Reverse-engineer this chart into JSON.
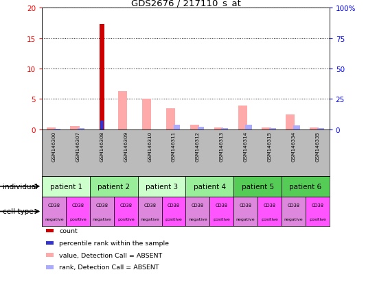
{
  "title": "GDS2676 / 217110_s_at",
  "samples": [
    "GSM146300",
    "GSM146307",
    "GSM146308",
    "GSM146309",
    "GSM146310",
    "GSM146311",
    "GSM146312",
    "GSM146313",
    "GSM146314",
    "GSM146315",
    "GSM146334",
    "GSM146335"
  ],
  "count_values": [
    0,
    0,
    17.3,
    0,
    0,
    0,
    0,
    0,
    0,
    0,
    0,
    0
  ],
  "percentile_values": [
    0,
    0,
    7.0,
    0,
    0,
    0,
    0,
    0,
    0,
    0,
    0,
    0
  ],
  "absent_value_values": [
    0.3,
    0.5,
    0,
    6.3,
    5.0,
    3.5,
    0.7,
    0.3,
    3.9,
    0.3,
    2.4,
    0.3
  ],
  "absent_rank_values": [
    0.5,
    0.8,
    0,
    0,
    0,
    4.0,
    2.0,
    0.8,
    4.0,
    0.8,
    3.1,
    0.8
  ],
  "patients": [
    {
      "label": "patient 1",
      "cols": [
        0,
        1
      ],
      "color": "#ccffcc"
    },
    {
      "label": "patient 2",
      "cols": [
        2,
        3
      ],
      "color": "#99ee99"
    },
    {
      "label": "patient 3",
      "cols": [
        4,
        5
      ],
      "color": "#ccffcc"
    },
    {
      "label": "patient 4",
      "cols": [
        6,
        7
      ],
      "color": "#99ee99"
    },
    {
      "label": "patient 5",
      "cols": [
        8,
        9
      ],
      "color": "#55cc55"
    },
    {
      "label": "patient 6",
      "cols": [
        10,
        11
      ],
      "color": "#55cc55"
    }
  ],
  "cell_types_top": [
    "CD38",
    "CD38",
    "CD38",
    "CD38",
    "CD38",
    "CD38",
    "CD38",
    "CD38",
    "CD38",
    "CD38",
    "CD38",
    "CD38"
  ],
  "cell_types_bot": [
    "negative",
    "positive",
    "negative",
    "positive",
    "negative",
    "positive",
    "negative",
    "positive",
    "negative",
    "positive",
    "negative",
    "positive"
  ],
  "cell_colors": [
    "#dd88dd",
    "#ff55ff",
    "#dd88dd",
    "#ff55ff",
    "#dd88dd",
    "#ff55ff",
    "#dd88dd",
    "#ff55ff",
    "#dd88dd",
    "#ff55ff",
    "#dd88dd",
    "#ff55ff"
  ],
  "ylim_left": [
    0,
    20
  ],
  "ylim_right": [
    0,
    100
  ],
  "yticks_left": [
    0,
    5,
    10,
    15,
    20
  ],
  "yticks_right": [
    0,
    25,
    50,
    75,
    100
  ],
  "ytick_labels_right": [
    "0",
    "25",
    "50",
    "75",
    "100%"
  ],
  "color_count": "#cc0000",
  "color_percentile": "#3333cc",
  "color_absent_value": "#ffaaaa",
  "color_absent_rank": "#aaaaff",
  "sample_area_bg": "#bbbbbb",
  "grid_color": "black"
}
